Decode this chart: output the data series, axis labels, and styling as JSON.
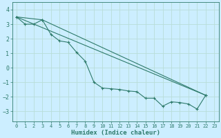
{
  "xlabel": "Humidex (Indice chaleur)",
  "background_color": "#cceeff",
  "grid_color": "#b8ddd8",
  "line_color": "#2d7a6a",
  "xlim": [
    -0.5,
    23.5
  ],
  "ylim": [
    -3.7,
    4.5
  ],
  "yticks": [
    -3,
    -2,
    -1,
    0,
    1,
    2,
    3,
    4
  ],
  "xticks": [
    0,
    1,
    2,
    3,
    4,
    5,
    6,
    7,
    8,
    9,
    10,
    11,
    12,
    13,
    14,
    15,
    16,
    17,
    18,
    19,
    20,
    21,
    22,
    23
  ],
  "line1_x": [
    0,
    1,
    2,
    3,
    4,
    5,
    6,
    7,
    8,
    9,
    10,
    11,
    12,
    13,
    14,
    15,
    16,
    17,
    18,
    19,
    20,
    21,
    22
  ],
  "line1_y": [
    3.5,
    3.0,
    3.0,
    3.3,
    2.3,
    1.85,
    1.75,
    1.05,
    0.45,
    -1.0,
    -1.4,
    -1.45,
    -1.5,
    -1.6,
    -1.65,
    -2.1,
    -2.1,
    -2.65,
    -2.35,
    -2.4,
    -2.5,
    -2.85,
    -1.9
  ],
  "line2_x": [
    0,
    3,
    22
  ],
  "line2_y": [
    3.5,
    3.3,
    -1.9
  ],
  "line3_x": [
    0,
    22
  ],
  "line3_y": [
    3.5,
    -1.9
  ]
}
